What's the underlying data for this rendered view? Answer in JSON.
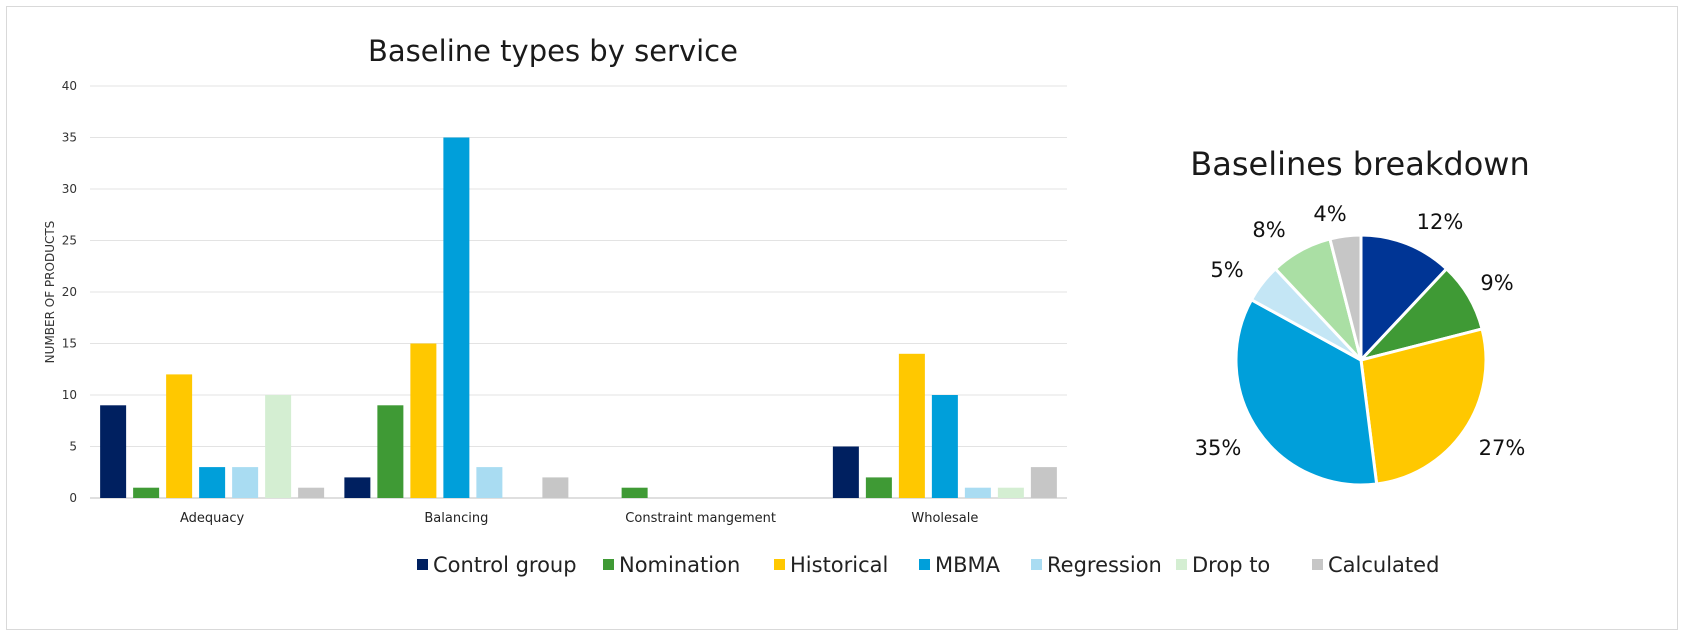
{
  "chart_data": [
    {
      "type": "bar",
      "title": "Baseline types by service",
      "ylabel": "NUMBER OF PRODUCTS",
      "ylim": [
        0,
        40
      ],
      "yticks": [
        0,
        5,
        10,
        15,
        20,
        25,
        30,
        35,
        40
      ],
      "grid": true,
      "legend_position": "bottom",
      "categories": [
        "Adequacy",
        "Balancing",
        "Constraint mangement",
        "Wholesale"
      ],
      "series": [
        {
          "name": "Control group",
          "color": "#002060",
          "values": [
            9,
            2,
            0,
            5
          ]
        },
        {
          "name": "Nomination",
          "color": "#3f9a35",
          "values": [
            1,
            9,
            1,
            2
          ]
        },
        {
          "name": "Historical",
          "color": "#ffc800",
          "values": [
            12,
            15,
            0,
            14
          ]
        },
        {
          "name": "MBMA",
          "color": "#009fda",
          "values": [
            3,
            35,
            0,
            10
          ]
        },
        {
          "name": "Regression",
          "color": "#a9dcf2",
          "values": [
            3,
            3,
            0,
            1
          ]
        },
        {
          "name": "Drop to",
          "color": "#d4eed2",
          "values": [
            10,
            0,
            0,
            1
          ]
        },
        {
          "name": "Calculated",
          "color": "#c6c6c6",
          "values": [
            1,
            2,
            0,
            3
          ]
        }
      ]
    },
    {
      "type": "pie",
      "title": "Baselines breakdown",
      "slices": [
        {
          "label": "12%",
          "value": 12,
          "color": "#003595"
        },
        {
          "label": "9%",
          "value": 9,
          "color": "#3f9a35"
        },
        {
          "label": "27%",
          "value": 27,
          "color": "#ffc800"
        },
        {
          "label": "35%",
          "value": 35,
          "color": "#009fda"
        },
        {
          "label": "5%",
          "value": 5,
          "color": "#c4e6f5"
        },
        {
          "label": "8%",
          "value": 8,
          "color": "#aadfa4"
        },
        {
          "label": "4%",
          "value": 4,
          "color": "#c6c6c6"
        }
      ]
    }
  ]
}
